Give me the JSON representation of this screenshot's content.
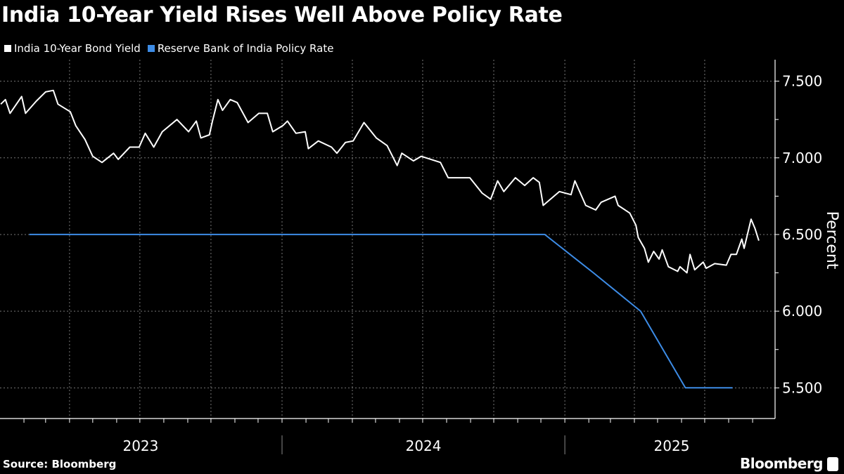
{
  "title": "India 10-Year Yield Rises Well Above Policy Rate",
  "source": "Source: Bloomberg",
  "brand": "Bloomberg",
  "chart_data": {
    "type": "line",
    "title": "India 10-Year Yield Rises Well Above Policy Rate",
    "ylabel": "Percent",
    "xlabel": "",
    "ylim": [
      5.3,
      7.64
    ],
    "xlim": [
      "2023-01-01",
      "2025-10-05"
    ],
    "y_ticks": [
      "7.500",
      "7.000",
      "6.500",
      "6.000",
      "5.500"
    ],
    "y_tick_values": [
      7.5,
      7.0,
      6.5,
      6.0,
      5.5
    ],
    "x_tick_labels": [
      {
        "label": "2023",
        "date": "2023-07-02"
      },
      {
        "label": "2024",
        "date": "2024-07-02"
      },
      {
        "label": "2025",
        "date": "2025-07-02"
      }
    ],
    "y_axis_side": "right",
    "grid": true,
    "legend_position": "top-left",
    "series": [
      {
        "name": "India 10-Year Bond Yield",
        "color": "#ffffff",
        "points": [
          [
            "2023-01-02",
            7.35
          ],
          [
            "2023-01-08",
            7.38
          ],
          [
            "2023-01-14",
            7.29
          ],
          [
            "2023-01-29",
            7.4
          ],
          [
            "2023-02-03",
            7.29
          ],
          [
            "2023-02-17",
            7.37
          ],
          [
            "2023-03-01",
            7.43
          ],
          [
            "2023-03-11",
            7.44
          ],
          [
            "2023-03-17",
            7.35
          ],
          [
            "2023-04-02",
            7.3
          ],
          [
            "2023-04-09",
            7.21
          ],
          [
            "2023-04-21",
            7.12
          ],
          [
            "2023-05-01",
            7.01
          ],
          [
            "2023-05-13",
            6.97
          ],
          [
            "2023-05-28",
            7.03
          ],
          [
            "2023-06-03",
            6.99
          ],
          [
            "2023-06-18",
            7.07
          ],
          [
            "2023-06-30",
            7.07
          ],
          [
            "2023-07-08",
            7.16
          ],
          [
            "2023-07-19",
            7.07
          ],
          [
            "2023-07-30",
            7.17
          ],
          [
            "2023-08-18",
            7.25
          ],
          [
            "2023-09-02",
            7.17
          ],
          [
            "2023-09-12",
            7.24
          ],
          [
            "2023-09-18",
            7.13
          ],
          [
            "2023-09-29",
            7.15
          ],
          [
            "2023-10-03",
            7.24
          ],
          [
            "2023-10-10",
            7.38
          ],
          [
            "2023-10-16",
            7.31
          ],
          [
            "2023-10-26",
            7.38
          ],
          [
            "2023-11-04",
            7.36
          ],
          [
            "2023-11-18",
            7.23
          ],
          [
            "2023-12-02",
            7.29
          ],
          [
            "2023-12-13",
            7.29
          ],
          [
            "2023-12-20",
            7.17
          ],
          [
            "2024-01-02",
            7.21
          ],
          [
            "2024-01-08",
            7.24
          ],
          [
            "2024-01-19",
            7.16
          ],
          [
            "2024-01-31",
            7.17
          ],
          [
            "2024-02-04",
            7.06
          ],
          [
            "2024-02-17",
            7.11
          ],
          [
            "2024-03-05",
            7.07
          ],
          [
            "2024-03-12",
            7.03
          ],
          [
            "2024-03-23",
            7.1
          ],
          [
            "2024-04-02",
            7.11
          ],
          [
            "2024-04-16",
            7.23
          ],
          [
            "2024-05-02",
            7.13
          ],
          [
            "2024-05-16",
            7.08
          ],
          [
            "2024-05-29",
            6.95
          ],
          [
            "2024-06-04",
            7.03
          ],
          [
            "2024-06-19",
            6.98
          ],
          [
            "2024-06-29",
            7.01
          ],
          [
            "2024-07-24",
            6.97
          ],
          [
            "2024-08-03",
            6.87
          ],
          [
            "2024-08-31",
            6.87
          ],
          [
            "2024-09-16",
            6.77
          ],
          [
            "2024-09-27",
            6.73
          ],
          [
            "2024-10-06",
            6.85
          ],
          [
            "2024-10-14",
            6.78
          ],
          [
            "2024-10-29",
            6.87
          ],
          [
            "2024-11-10",
            6.82
          ],
          [
            "2024-11-21",
            6.87
          ],
          [
            "2024-11-29",
            6.84
          ],
          [
            "2024-12-04",
            6.69
          ],
          [
            "2024-12-25",
            6.78
          ],
          [
            "2025-01-09",
            6.76
          ],
          [
            "2025-01-14",
            6.85
          ],
          [
            "2025-01-28",
            6.69
          ],
          [
            "2025-02-10",
            6.66
          ],
          [
            "2025-02-17",
            6.71
          ],
          [
            "2025-03-07",
            6.75
          ],
          [
            "2025-03-11",
            6.69
          ],
          [
            "2025-03-26",
            6.64
          ],
          [
            "2025-04-03",
            6.56
          ],
          [
            "2025-04-06",
            6.48
          ],
          [
            "2025-04-14",
            6.41
          ],
          [
            "2025-04-19",
            6.32
          ],
          [
            "2025-04-26",
            6.39
          ],
          [
            "2025-05-03",
            6.34
          ],
          [
            "2025-05-07",
            6.4
          ],
          [
            "2025-05-15",
            6.29
          ],
          [
            "2025-05-27",
            6.26
          ],
          [
            "2025-05-30",
            6.29
          ],
          [
            "2025-06-08",
            6.25
          ],
          [
            "2025-06-12",
            6.37
          ],
          [
            "2025-06-18",
            6.27
          ],
          [
            "2025-06-29",
            6.32
          ],
          [
            "2025-07-03",
            6.28
          ],
          [
            "2025-07-14",
            6.31
          ],
          [
            "2025-07-29",
            6.3
          ],
          [
            "2025-08-04",
            6.37
          ],
          [
            "2025-08-11",
            6.37
          ],
          [
            "2025-08-18",
            6.47
          ],
          [
            "2025-08-21",
            6.41
          ],
          [
            "2025-08-30",
            6.6
          ],
          [
            "2025-09-04",
            6.54
          ],
          [
            "2025-09-09",
            6.46
          ]
        ]
      },
      {
        "name": "Reserve Bank of India Policy Rate",
        "color": "#3d8ce6",
        "points": [
          [
            "2023-02-08",
            6.5
          ],
          [
            "2024-12-06",
            6.5
          ],
          [
            "2025-02-07",
            6.25
          ],
          [
            "2025-04-09",
            6.0
          ],
          [
            "2025-06-06",
            5.5
          ],
          [
            "2025-08-06",
            5.5
          ]
        ]
      }
    ]
  }
}
